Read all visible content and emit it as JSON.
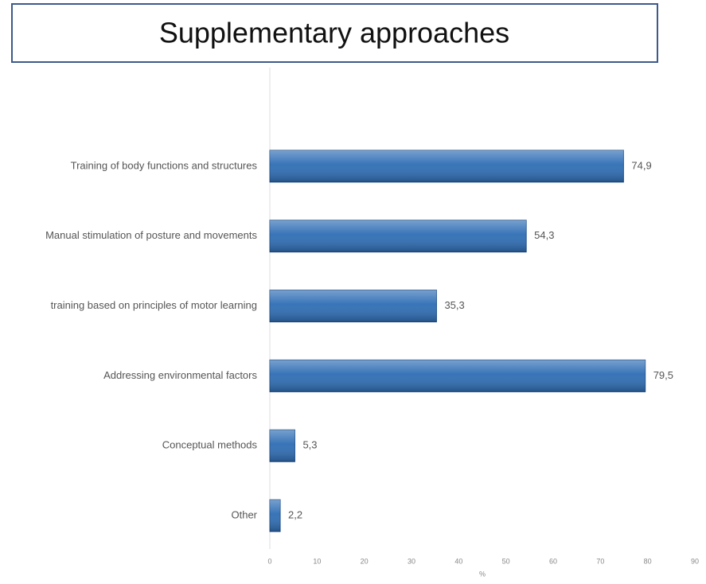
{
  "chart_data": {
    "type": "bar",
    "orientation": "horizontal",
    "title": "Supplementary approaches",
    "categories": [
      "Training of body functions and structures",
      "Manual stimulation of posture and movements",
      "training based on principles of motor learning",
      "Addressing environmental factors",
      "Conceptual methods",
      "Other"
    ],
    "values": [
      74.9,
      54.3,
      35.3,
      79.5,
      5.3,
      2.2
    ],
    "value_labels": [
      "74,9",
      "54,3",
      "35,3",
      "79,5",
      "5,3",
      "2,2"
    ],
    "color": "#2e6db4",
    "xlabel": "%",
    "xlim": [
      0,
      90
    ],
    "xticks": [
      0,
      10,
      20,
      30,
      40,
      50,
      60,
      70,
      80,
      90
    ]
  }
}
